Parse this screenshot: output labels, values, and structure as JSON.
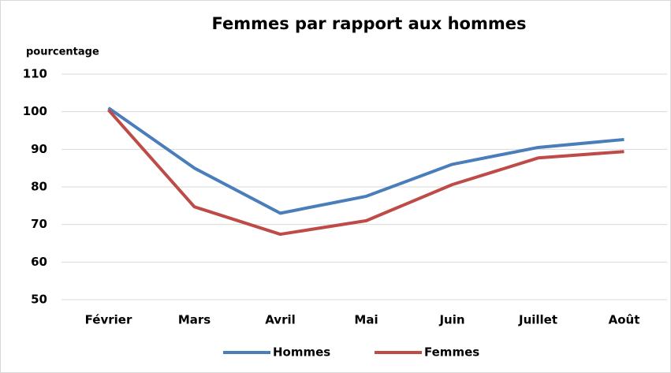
{
  "chart_data": {
    "type": "line",
    "title": "Femmes par rapport aux hommes",
    "y_label": "pourcentage",
    "categories": [
      "Février",
      "Mars",
      "Avril",
      "Mai",
      "Juin",
      "Juillet",
      "Août"
    ],
    "series": [
      {
        "name": "Hommes",
        "color": "#4a7ebb",
        "values": [
          101,
          85,
          73,
          77.5,
          86,
          90.5,
          92.6
        ]
      },
      {
        "name": "Femmes",
        "color": "#be4b48",
        "values": [
          100.5,
          74.7,
          67.4,
          71,
          80.6,
          87.7,
          89.4
        ]
      }
    ],
    "ylim": [
      50,
      110
    ],
    "yticks": [
      50,
      60,
      70,
      80,
      90,
      100,
      110
    ],
    "grid": true,
    "legend": "bottom"
  }
}
